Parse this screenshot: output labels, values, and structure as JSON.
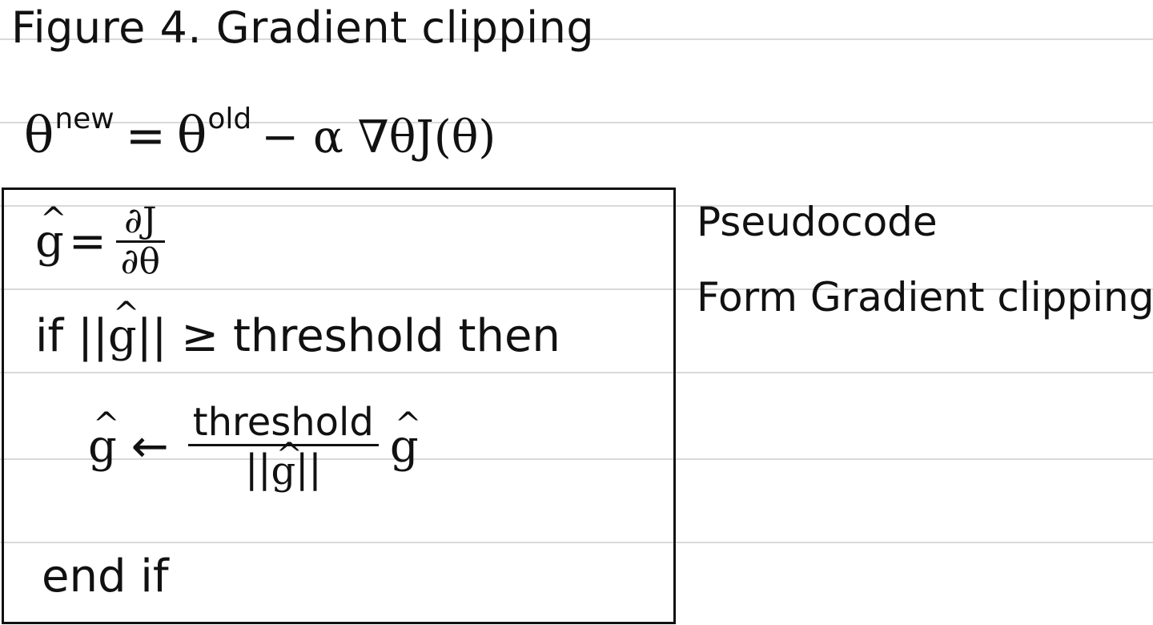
{
  "title": "Figure 4. Gradient clipping",
  "update_rule": {
    "lhs_symbol": "θ",
    "lhs_superscript": "new",
    "equals": "=",
    "rhs_symbol": "θ",
    "rhs_superscript": "old",
    "rest": "− α ∇θJ(θ)"
  },
  "pseudocode": {
    "hat_symbol": "^",
    "g_symbol": "g",
    "assign_equals": "=",
    "grad_numerator": "∂J",
    "grad_denominator": "∂θ",
    "if_keyword": "if",
    "norm_open": "||",
    "norm_close": "||",
    "condition_rest": "≥ threshold then",
    "arrow": "←",
    "scale_numerator": "threshold",
    "end_if": "end if"
  },
  "side_note": {
    "line1": "Pseudocode",
    "line2": "Form Gradient clipping"
  }
}
